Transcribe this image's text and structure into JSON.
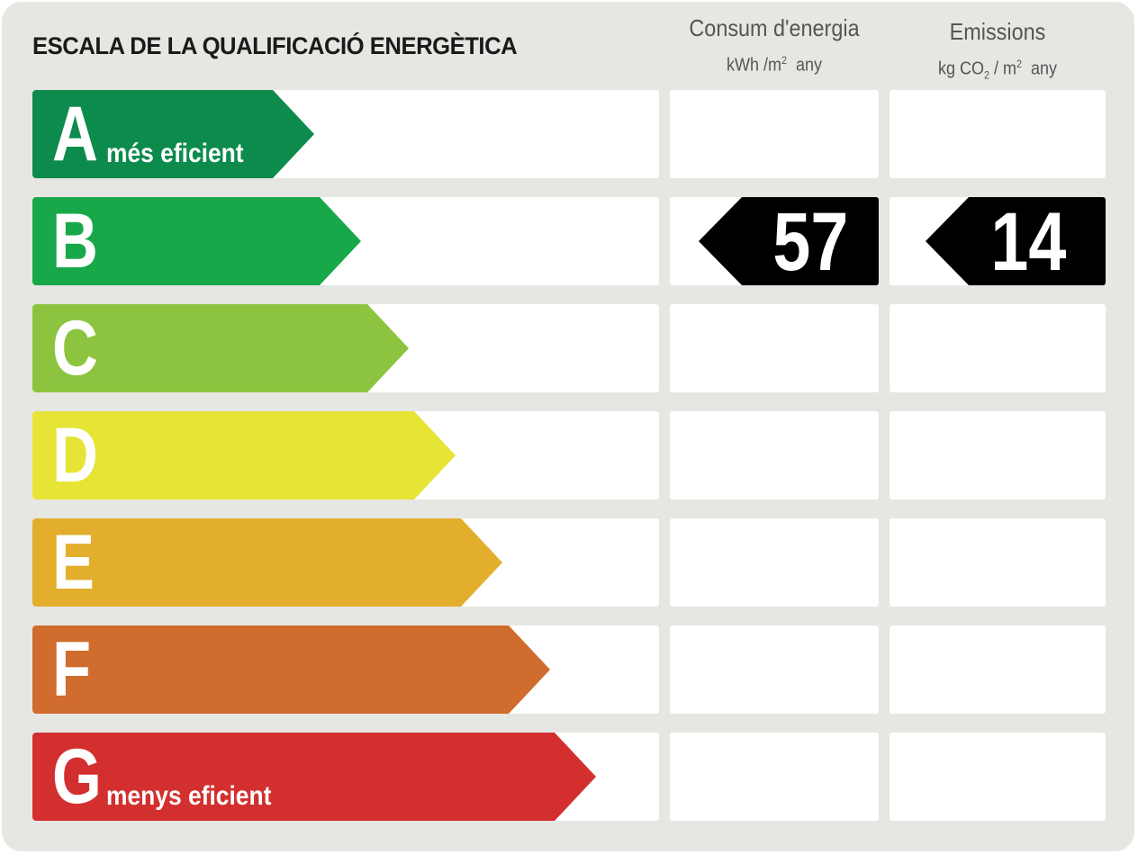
{
  "title": "ESCALA DE LA QUALIFICACIÓ ENERGÈTICA",
  "columns": {
    "energy": {
      "label": "Consum d'energia",
      "unit_prefix": "kWh /m",
      "unit_sup": "2",
      "unit_suffix": "any"
    },
    "emissions": {
      "label": "Emissions",
      "unit_prefix": "kg CO",
      "unit_sub": "2",
      "unit_mid": " / m",
      "unit_sup": "2",
      "unit_suffix": "any"
    }
  },
  "ratings": [
    {
      "letter": "A",
      "caption": "més eficient",
      "color": "#0c8b4c",
      "length": 0.45
    },
    {
      "letter": "B",
      "caption": "",
      "color": "#18a84a",
      "length": 0.525
    },
    {
      "letter": "C",
      "caption": "",
      "color": "#8dc43f",
      "length": 0.6
    },
    {
      "letter": "D",
      "caption": "",
      "color": "#e6e434",
      "length": 0.675
    },
    {
      "letter": "E",
      "caption": "",
      "color": "#e2ae2c",
      "length": 0.75
    },
    {
      "letter": "F",
      "caption": "",
      "color": "#d06c2d",
      "length": 0.826
    },
    {
      "letter": "G",
      "caption": "menys eficient",
      "color": "#d32f2f",
      "length": 0.9
    }
  ],
  "result": {
    "rating_letter": "B",
    "energy_value": "57",
    "emissions_value": "14",
    "marker_color": "#000000"
  }
}
